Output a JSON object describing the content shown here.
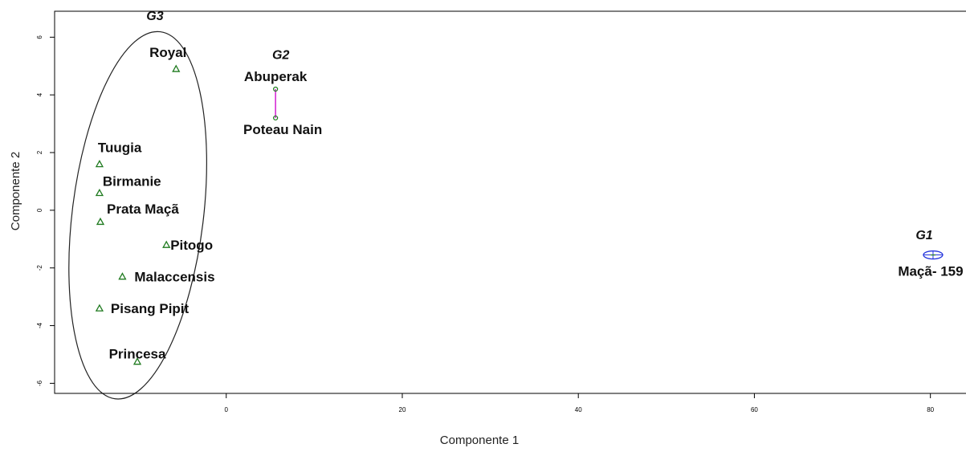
{
  "chart_data": {
    "type": "scatter",
    "xlabel": "Componente 1",
    "ylabel": "Componente 2",
    "xlim": [
      -19.5,
      84.5
    ],
    "ylim": [
      -6.35,
      6.9
    ],
    "xticks": [
      0,
      20,
      40,
      60,
      80
    ],
    "yticks": [
      -6,
      -4,
      -2,
      0,
      2,
      4,
      6
    ],
    "grid": false,
    "points": [
      {
        "label": "Royal",
        "x": -5.7,
        "y": 4.9,
        "group": "G3"
      },
      {
        "label": "Tuugia",
        "x": -14.4,
        "y": 1.6,
        "group": "G3"
      },
      {
        "label": "Birmanie",
        "x": -14.4,
        "y": 0.6,
        "group": "G3"
      },
      {
        "label": "Prata Maçã",
        "x": -14.3,
        "y": -0.4,
        "group": "G3"
      },
      {
        "label": "Pitogo",
        "x": -6.8,
        "y": -1.2,
        "group": "G3"
      },
      {
        "label": "Malaccensis",
        "x": -11.8,
        "y": -2.3,
        "group": "G3"
      },
      {
        "label": "Pisang Pipit",
        "x": -14.4,
        "y": -3.4,
        "group": "G3"
      },
      {
        "label": "Princesa",
        "x": -10.1,
        "y": -5.25,
        "group": "G3"
      },
      {
        "label": "Abuperak",
        "x": 5.6,
        "y": 4.2,
        "group": "G2"
      },
      {
        "label": "Poteau Nain",
        "x": 5.6,
        "y": 3.2,
        "group": "G2"
      },
      {
        "label": "Maçã- 159",
        "x": 80.3,
        "y": -1.55,
        "group": "G1"
      }
    ],
    "groups": [
      {
        "name": "G1",
        "color": "#2233dd",
        "label_x": 79.3,
        "label_y": -1.0
      },
      {
        "name": "G2",
        "color": "#d21ed2",
        "label_x": 6.2,
        "label_y": 5.25
      },
      {
        "name": "G3",
        "color": "#222222",
        "label_x": -8.1,
        "label_y": 6.6
      }
    ],
    "point_color": "#1f7a1f",
    "ellipse_color": "#222222"
  }
}
